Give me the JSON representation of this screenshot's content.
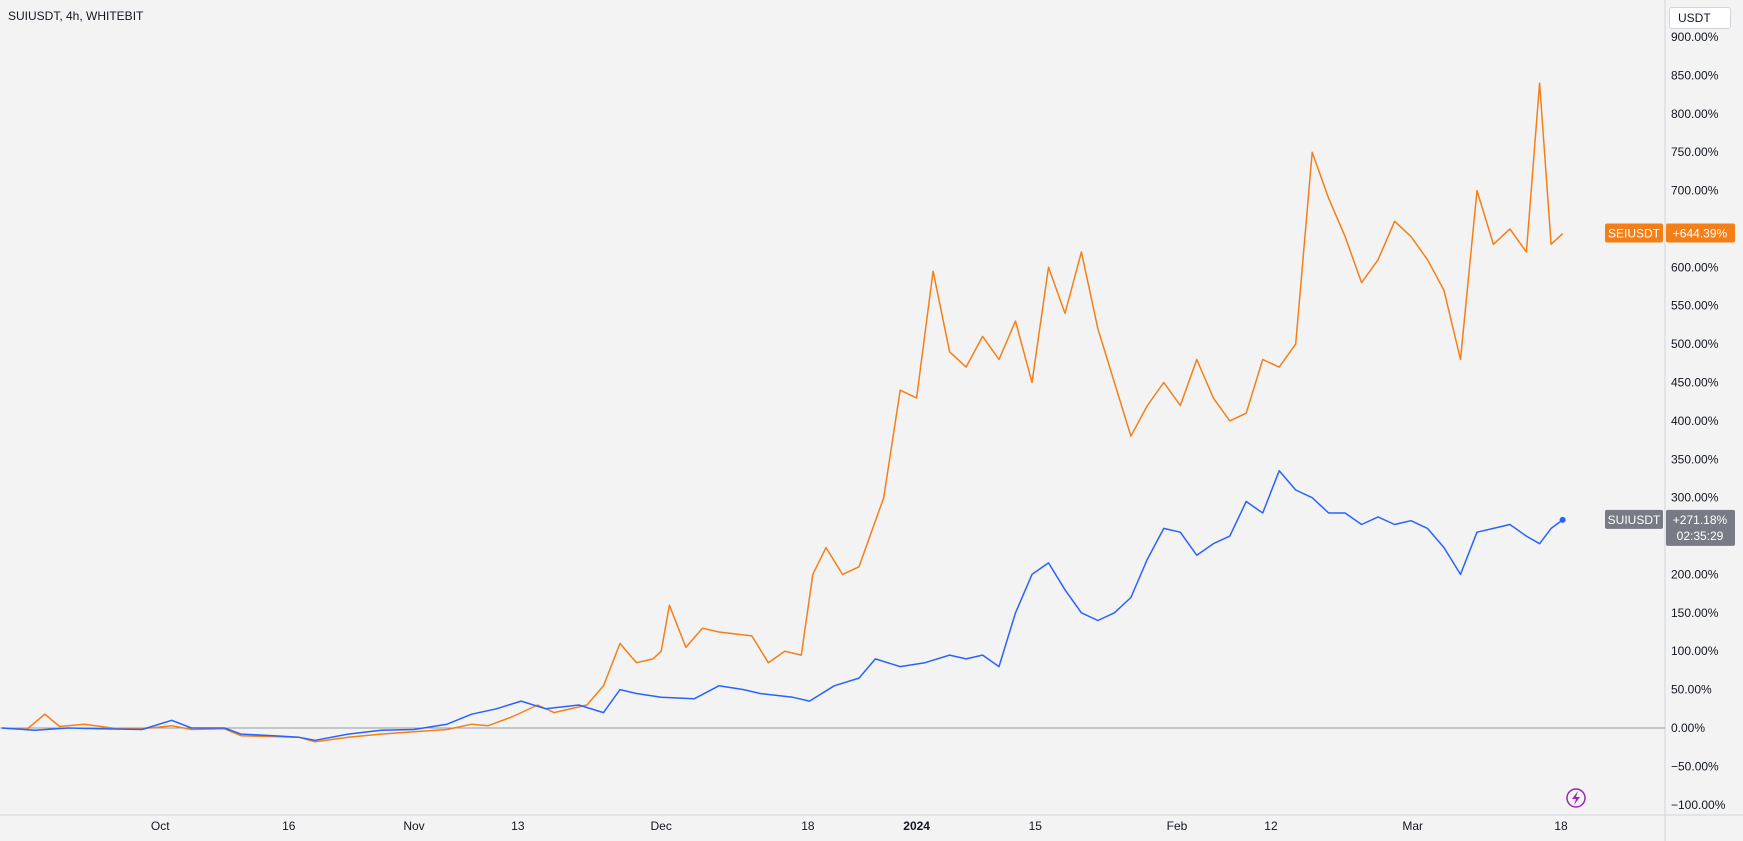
{
  "header": {
    "symbol_title": "SUIUSDT, 4h, WHITEBIT"
  },
  "currency_button": {
    "label": "USDT"
  },
  "chart_data": {
    "type": "line",
    "title": "SUIUSDT, 4h, WHITEBIT",
    "xlabel": "",
    "ylabel": "",
    "y_unit": "%",
    "ylim": [
      -100,
      900
    ],
    "y_ticks": [
      "900.00%",
      "850.00%",
      "800.00%",
      "750.00%",
      "700.00%",
      "650.00%",
      "600.00%",
      "550.00%",
      "500.00%",
      "450.00%",
      "400.00%",
      "350.00%",
      "300.00%",
      "250.00%",
      "200.00%",
      "150.00%",
      "100.00%",
      "50.00%",
      "0.00%",
      "−50.00%",
      "−100.00%"
    ],
    "x_ticks": [
      {
        "label": "Oct",
        "bold": false
      },
      {
        "label": "16",
        "bold": false
      },
      {
        "label": "Nov",
        "bold": false
      },
      {
        "label": "13",
        "bold": false
      },
      {
        "label": "Dec",
        "bold": false
      },
      {
        "label": "18",
        "bold": false
      },
      {
        "label": "2024",
        "bold": true
      },
      {
        "label": "15",
        "bold": false
      },
      {
        "label": "Feb",
        "bold": false
      },
      {
        "label": "12",
        "bold": false
      },
      {
        "label": "Mar",
        "bold": false
      },
      {
        "label": "18",
        "bold": false
      }
    ],
    "x_domain": [
      0,
      100
    ],
    "x_tick_positions": [
      9.6,
      17.4,
      25.0,
      31.3,
      40.0,
      48.9,
      55.5,
      62.7,
      71.3,
      77.0,
      85.6,
      94.6
    ],
    "grid": false,
    "legend": "right",
    "zero_line": true,
    "series": [
      {
        "name": "SEIUSDT",
        "color": "#f57f17",
        "last_label": "+644.39%",
        "points": [
          [
            0,
            0
          ],
          [
            1.5,
            -2
          ],
          [
            2.6,
            18
          ],
          [
            3.5,
            2
          ],
          [
            5,
            5
          ],
          [
            7,
            -1
          ],
          [
            9,
            0
          ],
          [
            10.3,
            3
          ],
          [
            11.5,
            -2
          ],
          [
            13.5,
            -1
          ],
          [
            14.5,
            -10
          ],
          [
            16,
            -11
          ],
          [
            18,
            -12
          ],
          [
            19,
            -18
          ],
          [
            21,
            -12
          ],
          [
            23,
            -8
          ],
          [
            25,
            -5
          ],
          [
            27,
            -2
          ],
          [
            28.5,
            5
          ],
          [
            29.5,
            3
          ],
          [
            31,
            15
          ],
          [
            32.5,
            30
          ],
          [
            33.5,
            20
          ],
          [
            35.5,
            30
          ],
          [
            36.5,
            55
          ],
          [
            37.5,
            110
          ],
          [
            38.5,
            85
          ],
          [
            39.5,
            90
          ],
          [
            40,
            100
          ],
          [
            40.5,
            160
          ],
          [
            41.5,
            105
          ],
          [
            42.5,
            130
          ],
          [
            43.5,
            125
          ],
          [
            45.5,
            120
          ],
          [
            46.5,
            85
          ],
          [
            47.5,
            100
          ],
          [
            48.5,
            95
          ],
          [
            49.2,
            200
          ],
          [
            50,
            235
          ],
          [
            51,
            200
          ],
          [
            52,
            210
          ],
          [
            53.5,
            300
          ],
          [
            54.5,
            440
          ],
          [
            55.5,
            430
          ],
          [
            56.5,
            595
          ],
          [
            57.5,
            490
          ],
          [
            58.5,
            470
          ],
          [
            59.5,
            510
          ],
          [
            60.5,
            480
          ],
          [
            61.5,
            530
          ],
          [
            62.5,
            450
          ],
          [
            63.5,
            600
          ],
          [
            64.5,
            540
          ],
          [
            65.5,
            620
          ],
          [
            66.5,
            520
          ],
          [
            67.5,
            450
          ],
          [
            68.5,
            380
          ],
          [
            69.5,
            420
          ],
          [
            70.5,
            450
          ],
          [
            71.5,
            420
          ],
          [
            72.5,
            480
          ],
          [
            73.5,
            430
          ],
          [
            74.5,
            400
          ],
          [
            75.5,
            410
          ],
          [
            76.5,
            480
          ],
          [
            77.5,
            470
          ],
          [
            78.5,
            500
          ],
          [
            79.5,
            750
          ],
          [
            80.5,
            690
          ],
          [
            81.5,
            640
          ],
          [
            82.5,
            580
          ],
          [
            83.5,
            610
          ],
          [
            84.5,
            660
          ],
          [
            85.5,
            640
          ],
          [
            86.5,
            610
          ],
          [
            87.5,
            570
          ],
          [
            88.5,
            480
          ],
          [
            89.5,
            700
          ],
          [
            90.5,
            630
          ],
          [
            91.5,
            650
          ],
          [
            92.5,
            620
          ],
          [
            93.3,
            840
          ],
          [
            94,
            630
          ],
          [
            94.7,
            644
          ]
        ]
      },
      {
        "name": "SUIUSDT",
        "color": "#2962ff",
        "last_label": "+271.18%",
        "countdown": "02:35:29",
        "points": [
          [
            0,
            0
          ],
          [
            2,
            -3
          ],
          [
            4,
            0
          ],
          [
            6,
            -1
          ],
          [
            8.5,
            -2
          ],
          [
            10.3,
            10
          ],
          [
            11.5,
            0
          ],
          [
            13.5,
            0
          ],
          [
            14.5,
            -8
          ],
          [
            16.5,
            -10
          ],
          [
            18,
            -12
          ],
          [
            19,
            -16
          ],
          [
            21,
            -8
          ],
          [
            23,
            -3
          ],
          [
            25,
            -2
          ],
          [
            27,
            5
          ],
          [
            28.5,
            18
          ],
          [
            30,
            25
          ],
          [
            31.5,
            35
          ],
          [
            33,
            25
          ],
          [
            35,
            30
          ],
          [
            36.5,
            20
          ],
          [
            37.5,
            50
          ],
          [
            38.5,
            45
          ],
          [
            40,
            40
          ],
          [
            42,
            38
          ],
          [
            43.5,
            55
          ],
          [
            45,
            50
          ],
          [
            46,
            45
          ],
          [
            48,
            40
          ],
          [
            49,
            35
          ],
          [
            50.5,
            55
          ],
          [
            52,
            65
          ],
          [
            53,
            90
          ],
          [
            54.5,
            80
          ],
          [
            56,
            85
          ],
          [
            57.5,
            95
          ],
          [
            58.5,
            90
          ],
          [
            59.5,
            95
          ],
          [
            60.5,
            80
          ],
          [
            61.5,
            150
          ],
          [
            62.5,
            200
          ],
          [
            63.5,
            215
          ],
          [
            64.5,
            180
          ],
          [
            65.5,
            150
          ],
          [
            66.5,
            140
          ],
          [
            67.5,
            150
          ],
          [
            68.5,
            170
          ],
          [
            69.5,
            220
          ],
          [
            70.5,
            260
          ],
          [
            71.5,
            255
          ],
          [
            72.5,
            225
          ],
          [
            73.5,
            240
          ],
          [
            74.5,
            250
          ],
          [
            75.5,
            295
          ],
          [
            76.5,
            280
          ],
          [
            77.5,
            335
          ],
          [
            78.5,
            310
          ],
          [
            79.5,
            300
          ],
          [
            80.5,
            280
          ],
          [
            81.5,
            280
          ],
          [
            82.5,
            265
          ],
          [
            83.5,
            275
          ],
          [
            84.5,
            265
          ],
          [
            85.5,
            270
          ],
          [
            86.5,
            260
          ],
          [
            87.5,
            235
          ],
          [
            88.5,
            200
          ],
          [
            89.5,
            255
          ],
          [
            90.5,
            260
          ],
          [
            91.5,
            265
          ],
          [
            92.5,
            250
          ],
          [
            93.3,
            240
          ],
          [
            94,
            260
          ],
          [
            94.7,
            271
          ]
        ]
      }
    ]
  },
  "badges": {
    "seiusdt_name": "SEIUSDT",
    "seiusdt_value": "+644.39%",
    "suiusdt_name": "SUIUSDT",
    "suiusdt_value": "+271.18%",
    "suiusdt_countdown": "02:35:29"
  },
  "icons": {
    "lightning": "lightning-icon"
  },
  "colors": {
    "background": "#f3f3f3",
    "axis_border": "#d1d4dc",
    "sei": "#f57f17",
    "sui": "#2962ff",
    "sui_badge": "#787b86",
    "zero_line": "#9598a1",
    "lightning": "#9c27b0"
  }
}
